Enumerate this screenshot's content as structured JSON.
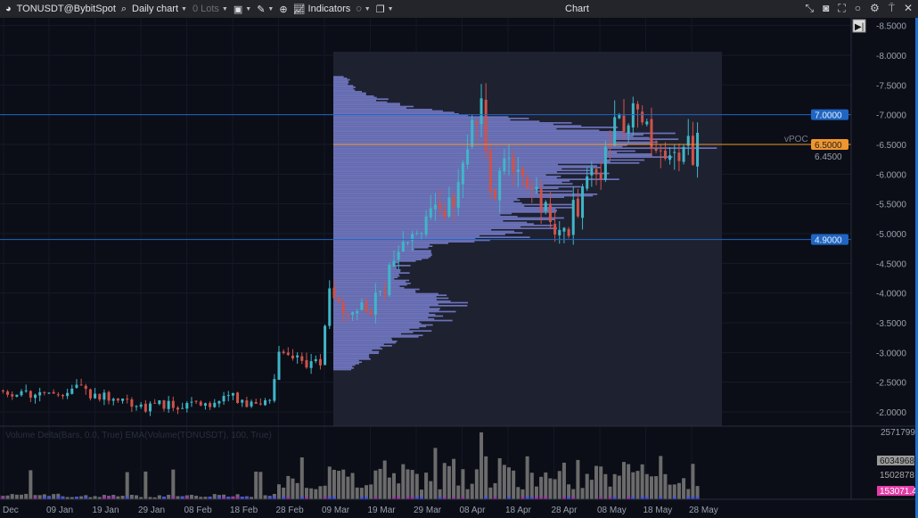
{
  "toolbar": {
    "symbol": "TONUSDT@BybitSpot",
    "timeframe": "Daily chart",
    "lots": "0 Lots",
    "indicators": "Indicators",
    "window_title": "Chart"
  },
  "study_label": "Volume Delta(Bars, 0.0, True) EMA(Volume(TONUSDT), 100, True)",
  "colors": {
    "up": "#3fb6c8",
    "down": "#d0524a",
    "profile": "#6c72b8",
    "level": "#1f66c4",
    "poc": "#f0962e",
    "volume": "#6b6b6b",
    "delta": "#e23ca7"
  },
  "chart_data": {
    "type": "candlestick",
    "price_axis": {
      "ticks": [
        "8.5000",
        "8.0000",
        "7.5000",
        "7.0000",
        "6.5000",
        "6.0000",
        "5.5000",
        "5.0000",
        "4.5000",
        "4.0000",
        "3.5000",
        "3.0000",
        "2.5000",
        "2.0000"
      ],
      "range": [
        1.9,
        8.55
      ]
    },
    "time_axis": {
      "ticks": [
        "Dec",
        "09 Jan",
        "19 Jan",
        "29 Jan",
        "08 Feb",
        "18 Feb",
        "28 Feb",
        "09 Mar",
        "19 Mar",
        "29 Mar",
        "08 Apr",
        "18 Apr",
        "28 Apr",
        "08 May",
        "18 May",
        "28 May"
      ]
    },
    "price_path": [
      [
        "2023-12-28",
        2.38
      ],
      [
        "2024-01-09",
        2.3
      ],
      [
        "2024-01-15",
        2.42
      ],
      [
        "2024-01-19",
        2.3
      ],
      [
        "2024-01-29",
        2.1
      ],
      [
        "2024-02-08",
        2.1
      ],
      [
        "2024-02-18",
        2.22
      ],
      [
        "2024-02-26",
        2.12
      ],
      [
        "2024-02-28",
        2.9
      ],
      [
        "2024-03-08",
        2.85
      ],
      [
        "2024-03-10",
        4.2
      ],
      [
        "2024-03-14",
        3.6
      ],
      [
        "2024-03-19",
        3.75
      ],
      [
        "2024-03-25",
        4.6
      ],
      [
        "2024-03-29",
        4.9
      ],
      [
        "2024-04-02",
        5.4
      ],
      [
        "2024-04-06",
        5.5
      ],
      [
        "2024-04-10",
        6.9
      ],
      [
        "2024-04-12",
        7.0
      ],
      [
        "2024-04-14",
        5.6
      ],
      [
        "2024-04-18",
        6.5
      ],
      [
        "2024-04-22",
        5.7
      ],
      [
        "2024-04-26",
        5.4
      ],
      [
        "2024-04-30",
        5.0
      ],
      [
        "2024-05-03",
        5.5
      ],
      [
        "2024-05-07",
        6.0
      ],
      [
        "2024-05-11",
        6.7
      ],
      [
        "2024-05-15",
        7.0
      ],
      [
        "2024-05-19",
        6.6
      ],
      [
        "2024-05-23",
        6.3
      ],
      [
        "2024-05-29",
        6.45
      ]
    ],
    "profile_levels": [
      [
        2.7,
        0.05
      ],
      [
        3.0,
        0.12
      ],
      [
        3.3,
        0.22
      ],
      [
        3.6,
        0.3
      ],
      [
        3.85,
        0.33
      ],
      [
        4.2,
        0.18
      ],
      [
        4.5,
        0.2
      ],
      [
        4.8,
        0.3
      ],
      [
        4.95,
        0.5
      ],
      [
        5.2,
        0.55
      ],
      [
        5.5,
        0.6
      ],
      [
        5.8,
        0.7
      ],
      [
        6.1,
        0.75
      ],
      [
        6.3,
        0.82
      ],
      [
        6.5,
        1.0
      ],
      [
        6.7,
        0.8
      ],
      [
        6.9,
        0.5
      ],
      [
        7.1,
        0.2
      ],
      [
        7.4,
        0.06
      ],
      [
        7.65,
        0.03
      ]
    ],
    "levels": [
      {
        "price": 7.0,
        "label": "7.0000"
      },
      {
        "price": 4.9,
        "label": "4.9000"
      }
    ],
    "poc": {
      "price": 6.5,
      "label": "6.5000",
      "name": "vPOC"
    },
    "last_price": "6.4500",
    "volume_axis": {
      "max_label": "2571799",
      "labels": [
        "6034968",
        "1502878"
      ],
      "delta_label": "153071.4"
    }
  }
}
